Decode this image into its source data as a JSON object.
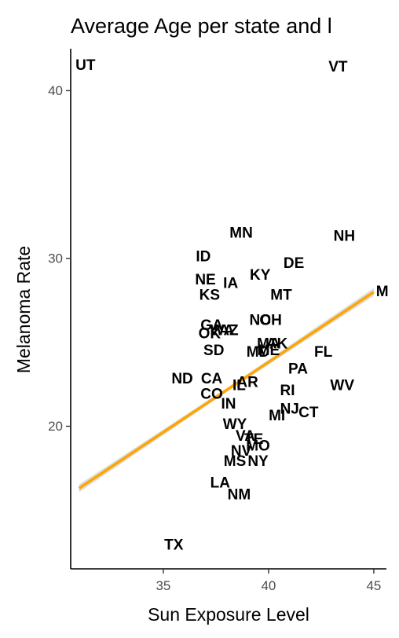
{
  "chart_data": {
    "type": "scatter",
    "title": "Average Age per state and l",
    "xlabel": "Sun Exposure Level",
    "ylabel": "Melanoma Rate",
    "xlim": [
      30.6,
      45.6
    ],
    "ylim": [
      11.5,
      42.5
    ],
    "x_ticks": [
      35,
      40,
      45
    ],
    "y_ticks": [
      20,
      30,
      40
    ],
    "grid": false,
    "colors": {
      "fit_line": "#FFA500",
      "fit_band": "#bfbfbf",
      "axis": "#000000",
      "tick_text": "#4d4d4d",
      "labels": "#000000"
    },
    "points": [
      {
        "label": "UT",
        "x": 31.3,
        "y": 41.5
      },
      {
        "label": "VT",
        "x": 43.3,
        "y": 41.4
      },
      {
        "label": "MN",
        "x": 38.7,
        "y": 31.5
      },
      {
        "label": "NH",
        "x": 43.6,
        "y": 31.3
      },
      {
        "label": "ID",
        "x": 36.9,
        "y": 30.1
      },
      {
        "label": "DE",
        "x": 41.2,
        "y": 29.7
      },
      {
        "label": "KY",
        "x": 39.6,
        "y": 29.0
      },
      {
        "label": "NE",
        "x": 37.0,
        "y": 28.7
      },
      {
        "label": "IA",
        "x": 38.2,
        "y": 28.5
      },
      {
        "label": "M",
        "x": 45.4,
        "y": 28.0
      },
      {
        "label": "KS",
        "x": 37.2,
        "y": 27.8
      },
      {
        "label": "MT",
        "x": 40.6,
        "y": 27.8
      },
      {
        "label": "NC",
        "x": 39.6,
        "y": 26.3
      },
      {
        "label": "OH",
        "x": 40.1,
        "y": 26.3
      },
      {
        "label": "GA",
        "x": 37.3,
        "y": 26.0
      },
      {
        "label": "WA",
        "x": 37.8,
        "y": 25.7
      },
      {
        "label": "AZ",
        "x": 38.1,
        "y": 25.7
      },
      {
        "label": "OK",
        "x": 37.2,
        "y": 25.5
      },
      {
        "label": "MA",
        "x": 40.0,
        "y": 24.9
      },
      {
        "label": "AK",
        "x": 40.4,
        "y": 24.9
      },
      {
        "label": "MD",
        "x": 39.5,
        "y": 24.4
      },
      {
        "label": "ME",
        "x": 40.0,
        "y": 24.5
      },
      {
        "label": "SD",
        "x": 37.4,
        "y": 24.5
      },
      {
        "label": "FL",
        "x": 42.6,
        "y": 24.4
      },
      {
        "label": "PA",
        "x": 41.4,
        "y": 23.4
      },
      {
        "label": "ND",
        "x": 35.9,
        "y": 22.8
      },
      {
        "label": "CA",
        "x": 37.3,
        "y": 22.8
      },
      {
        "label": "AR",
        "x": 39.0,
        "y": 22.6
      },
      {
        "label": "IL",
        "x": 38.6,
        "y": 22.4
      },
      {
        "label": "WV",
        "x": 43.5,
        "y": 22.4
      },
      {
        "label": "CO",
        "x": 37.3,
        "y": 21.9
      },
      {
        "label": "RI",
        "x": 40.9,
        "y": 22.1
      },
      {
        "label": "IN",
        "x": 38.1,
        "y": 21.3
      },
      {
        "label": "NJ",
        "x": 41.0,
        "y": 21.0
      },
      {
        "label": "CT",
        "x": 41.9,
        "y": 20.8
      },
      {
        "label": "MI",
        "x": 40.4,
        "y": 20.6
      },
      {
        "label": "WY",
        "x": 38.4,
        "y": 20.1
      },
      {
        "label": "VA",
        "x": 38.9,
        "y": 19.4
      },
      {
        "label": "TE",
        "x": 39.3,
        "y": 19.2
      },
      {
        "label": "MO",
        "x": 39.5,
        "y": 18.8
      },
      {
        "label": "NV",
        "x": 38.7,
        "y": 18.5
      },
      {
        "label": "MS",
        "x": 38.4,
        "y": 17.9
      },
      {
        "label": "NY",
        "x": 39.5,
        "y": 17.9
      },
      {
        "label": "LA",
        "x": 37.7,
        "y": 16.6
      },
      {
        "label": "NM",
        "x": 38.6,
        "y": 15.9
      },
      {
        "label": "TX",
        "x": 35.5,
        "y": 12.9
      }
    ],
    "fit_line": {
      "x": [
        31.0,
        45.0
      ],
      "y": [
        16.3,
        28.0
      ]
    }
  }
}
